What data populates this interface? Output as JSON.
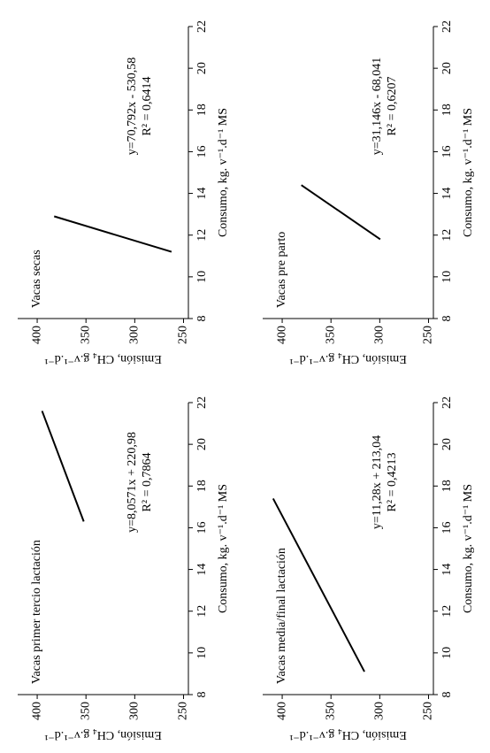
{
  "chart_data": [
    {
      "type": "line",
      "title": "Vacas secas",
      "annotations": [
        "y=70,792x - 530,58",
        "R² = 0,6414"
      ],
      "x_label": "Consumo, kg. v⁻¹.d⁻¹ MS",
      "y_label": "Emisión, CH₄ g.v⁻¹.d⁻¹",
      "x": [
        11.2,
        12.9
      ],
      "values": [
        262.3,
        382.6
      ],
      "color": "#000000",
      "xlim": [
        8,
        22
      ],
      "ylim": [
        245,
        420
      ],
      "xticks": [
        8,
        10,
        12,
        14,
        16,
        18,
        20,
        22
      ],
      "yticks": [
        250,
        300,
        350,
        400
      ]
    },
    {
      "type": "line",
      "title": "Vacas pre parto",
      "annotations": [
        "y=31,146x - 68,041",
        "R² = 0,6207"
      ],
      "x_label": "Consumo, kg. v⁻¹.d⁻¹ MS",
      "y_label": "Emisión, CH₄ g.v⁻¹.d⁻¹",
      "x": [
        11.8,
        14.4
      ],
      "values": [
        299.5,
        380.4
      ],
      "color": "#000000",
      "xlim": [
        8,
        22
      ],
      "ylim": [
        245,
        420
      ],
      "xticks": [
        8,
        10,
        12,
        14,
        16,
        18,
        20,
        22
      ],
      "yticks": [
        250,
        300,
        350,
        400
      ]
    },
    {
      "type": "line",
      "title": "Vacas primer tercio lactación",
      "annotations": [
        "y=8,0571x + 220,98",
        "R² = 0,7864"
      ],
      "x_label": "Consumo, kg. v⁻¹.d⁻¹ MS",
      "y_label": "Emisión, CH₄ g.v⁻¹.d⁻¹",
      "x": [
        16.3,
        21.6
      ],
      "values": [
        352.3,
        395.0
      ],
      "color": "#000000",
      "xlim": [
        8,
        22
      ],
      "ylim": [
        245,
        420
      ],
      "xticks": [
        8,
        10,
        12,
        14,
        16,
        18,
        20,
        22
      ],
      "yticks": [
        250,
        300,
        350,
        400
      ]
    },
    {
      "type": "line",
      "title": "Vacas media/final lactación",
      "annotations": [
        "y=11,28x + 213,04",
        "R² = 0,4213"
      ],
      "x_label": "Consumo, kg. v⁻¹.d⁻¹ MS",
      "y_label": "Emisión, CH₄ g.v⁻¹.d⁻¹",
      "x": [
        9.1,
        17.4
      ],
      "values": [
        315.7,
        409.3
      ],
      "color": "#000000",
      "xlim": [
        8,
        22
      ],
      "ylim": [
        245,
        420
      ],
      "xticks": [
        8,
        10,
        12,
        14,
        16,
        18,
        20,
        22
      ],
      "yticks": [
        250,
        300,
        350,
        400
      ]
    }
  ]
}
